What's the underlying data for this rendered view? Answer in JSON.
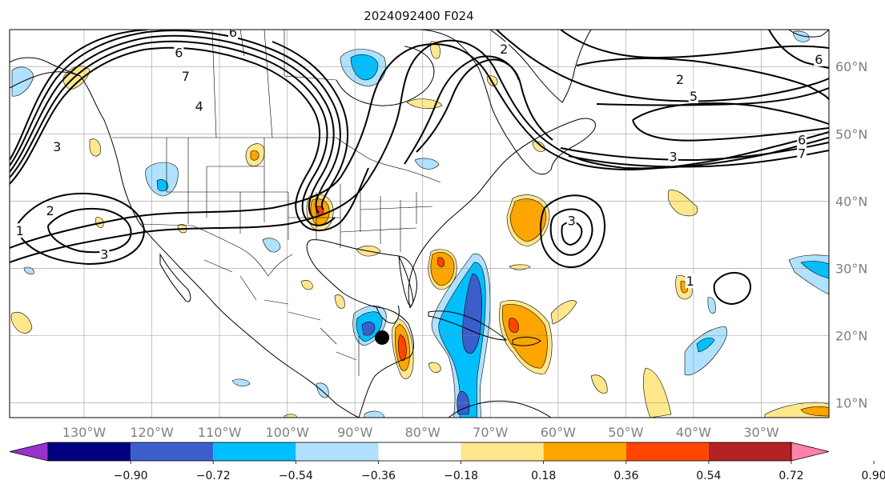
{
  "title": "2024092400 F024",
  "map": {
    "projection": "plate-carree",
    "lon_range": [
      -141,
      -20
    ],
    "lat_range": [
      7.8,
      65.5
    ],
    "grid": true
  },
  "lon_ticks": [
    {
      "value": -130,
      "label": "130°W"
    },
    {
      "value": -120,
      "label": "120°W"
    },
    {
      "value": -110,
      "label": "110°W"
    },
    {
      "value": -100,
      "label": "100°W"
    },
    {
      "value": -90,
      "label": "90°W"
    },
    {
      "value": -80,
      "label": "80°W"
    },
    {
      "value": -70,
      "label": "70°W"
    },
    {
      "value": -60,
      "label": "60°W"
    },
    {
      "value": -50,
      "label": "50°W"
    },
    {
      "value": -40,
      "label": "40°W"
    },
    {
      "value": -30,
      "label": "30°W"
    }
  ],
  "lat_ticks": [
    {
      "value": 10,
      "label": "10°N"
    },
    {
      "value": 20,
      "label": "20°N"
    },
    {
      "value": 30,
      "label": "30°N"
    },
    {
      "value": 40,
      "label": "40°N"
    },
    {
      "value": 50,
      "label": "50°N"
    },
    {
      "value": 60,
      "label": "60°N"
    }
  ],
  "colorbar": {
    "levels": [
      "−0.90",
      "−0.72",
      "−0.54",
      "−0.36",
      "−0.18",
      "0.18",
      "0.36",
      "0.54",
      "0.72",
      "0.90"
    ],
    "colors": [
      "#9932cc",
      "#000080",
      "#3a5fcd",
      "#00bfff",
      "#b0e2ff",
      "#ffffff",
      "#ffe78c",
      "#ffa500",
      "#ff4500",
      "#b22222",
      "#ff82ab"
    ],
    "extend": "both"
  },
  "fill_colors": {
    "pos1": "#ffe78c",
    "pos2": "#ffa500",
    "pos3": "#ff4500",
    "neg1": "#b0e2ff",
    "neg2": "#00bfff",
    "neg3": "#3a5fcd"
  },
  "contour_labels": [
    {
      "text": "6",
      "lon": -116,
      "lat": 62
    },
    {
      "text": "7",
      "lon": -115,
      "lat": 58.5
    },
    {
      "text": "4",
      "lon": -113,
      "lat": 54
    },
    {
      "text": "3",
      "lon": -134,
      "lat": 48
    },
    {
      "text": "2",
      "lon": -135,
      "lat": 38.5
    },
    {
      "text": "1",
      "lon": -139.5,
      "lat": 35.5
    },
    {
      "text": "3",
      "lon": -127,
      "lat": 32
    },
    {
      "text": "6",
      "lon": -108,
      "lat": 65
    },
    {
      "text": "2",
      "lon": -42,
      "lat": 58
    },
    {
      "text": "5",
      "lon": -40,
      "lat": 55.5
    },
    {
      "text": "3",
      "lon": -43,
      "lat": 46.5
    },
    {
      "text": "6",
      "lon": -24,
      "lat": 49
    },
    {
      "text": "7",
      "lon": -24,
      "lat": 47
    },
    {
      "text": "6",
      "lon": -21.5,
      "lat": 61
    },
    {
      "text": "2",
      "lon": -68,
      "lat": 62.5
    },
    {
      "text": "3",
      "lon": -58,
      "lat": 37
    },
    {
      "text": "1",
      "lon": -40.5,
      "lat": 28
    }
  ],
  "marker": {
    "name": "storm-center",
    "lon": -86,
    "lat": 19.7
  }
}
